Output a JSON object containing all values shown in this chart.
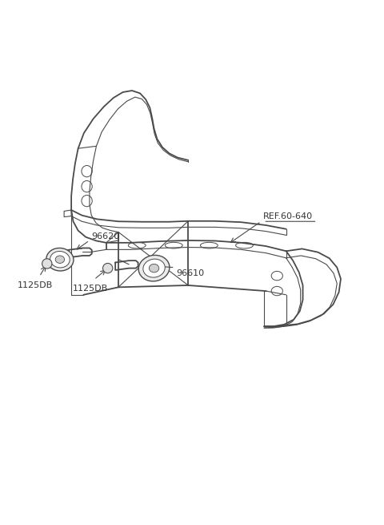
{
  "bg_color": "#ffffff",
  "line_color": "#4a4a4a",
  "text_color": "#333333",
  "fig_width": 4.8,
  "fig_height": 6.55,
  "dpi": 100,
  "lw_main": 1.3,
  "lw_thin": 0.8,
  "lw_xtra": 0.6,
  "labels": {
    "REF_60_640": {
      "text": "REF.60-640",
      "fontsize": 8.0
    },
    "96620": {
      "text": "96620",
      "fontsize": 8.0
    },
    "96610": {
      "text": "96610",
      "fontsize": 8.0
    },
    "1125DB_left": {
      "text": "1125DB",
      "fontsize": 8.0
    },
    "1125DB_center": {
      "text": "1125DB",
      "fontsize": 8.0
    }
  }
}
